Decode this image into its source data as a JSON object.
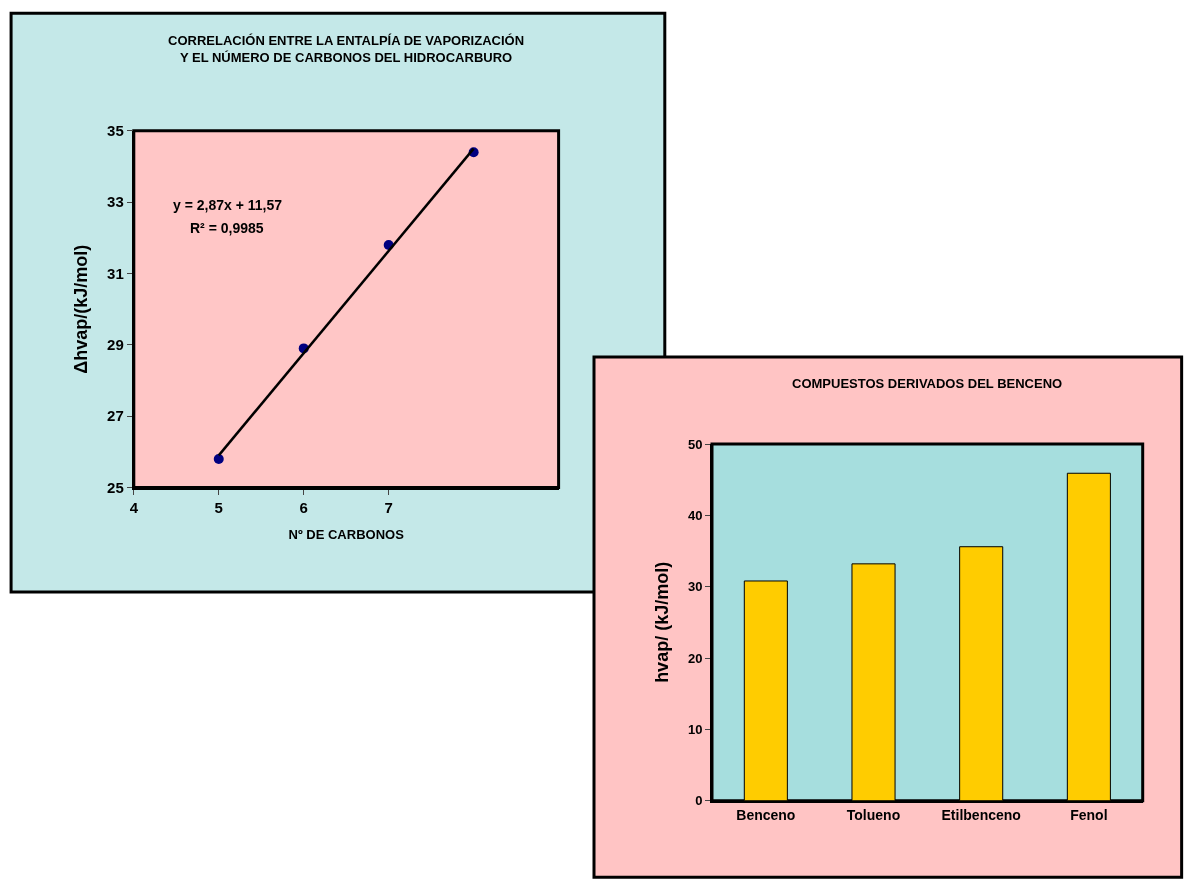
{
  "chart_data": [
    {
      "type": "scatter",
      "title": "CORRELACIÓN ENTRE LA ENTALPÍA DE VAPORIZACIÓN\nY EL NÚMERO DE CARBONOS DEL HIDROCARBURO",
      "xlabel": "Nº DE CARBONOS",
      "ylabel": "Δhvap/(kJ/mol)",
      "x": [
        5,
        6,
        7,
        8
      ],
      "series": [
        {
          "type": "scatter",
          "color": "#000080",
          "values": [
            25.8,
            28.9,
            31.8,
            34.4
          ]
        },
        {
          "type": "line",
          "marker": "none",
          "color": "#000000",
          "x": [
            5,
            8
          ],
          "values": [
            25.9,
            34.5
          ]
        }
      ],
      "xlim": [
        4,
        9
      ],
      "xticks": [
        4,
        5,
        6,
        7
      ],
      "ylim": [
        25,
        35
      ],
      "yticks": [
        25,
        27,
        29,
        31,
        33,
        35
      ],
      "annotations": [
        "y = 2,87x + 11,57",
        "R² = 0,9985"
      ],
      "marker": "circle",
      "grid": false
    },
    {
      "type": "bar",
      "title": "COMPUESTOS DERIVADOS DEL BENCENO",
      "ylabel": "hvap/ (kJ/mol)",
      "categories": [
        "Benceno",
        "Tolueno",
        "Etilbenceno",
        "Fenol"
      ],
      "values": [
        30.8,
        33.2,
        35.6,
        45.9
      ],
      "color": "#ffcc00",
      "ylim": [
        0,
        50
      ],
      "yticks": [
        0,
        10,
        20,
        30,
        40,
        50
      ],
      "grid": false
    }
  ]
}
